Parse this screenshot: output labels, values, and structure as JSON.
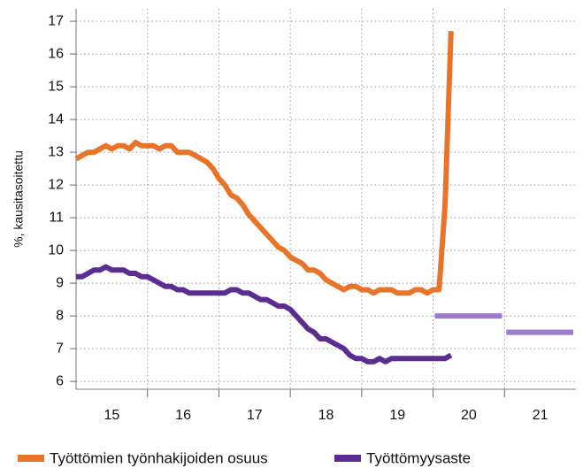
{
  "chart_data": {
    "type": "line",
    "ylabel": "%, kausitasoitettu",
    "x": [
      15,
      15.083,
      15.167,
      15.25,
      15.333,
      15.417,
      15.5,
      15.583,
      15.667,
      15.75,
      15.833,
      15.917,
      16,
      16.083,
      16.167,
      16.25,
      16.333,
      16.417,
      16.5,
      16.583,
      16.667,
      16.75,
      16.833,
      16.917,
      17,
      17.083,
      17.167,
      17.25,
      17.333,
      17.417,
      17.5,
      17.583,
      17.667,
      17.75,
      17.833,
      17.917,
      18,
      18.083,
      18.167,
      18.25,
      18.333,
      18.417,
      18.5,
      18.583,
      18.667,
      18.75,
      18.833,
      18.917,
      19,
      19.083,
      19.167,
      19.25,
      19.333,
      19.417,
      19.5,
      19.583,
      19.667,
      19.75,
      19.833,
      19.917,
      20,
      20.083,
      20.167,
      20.25
    ],
    "series": [
      {
        "name": "Työttömien työnhakijoiden osuus",
        "color": "#e8742a",
        "values": [
          12.8,
          12.9,
          13.0,
          13.0,
          13.1,
          13.2,
          13.1,
          13.2,
          13.2,
          13.1,
          13.3,
          13.2,
          13.2,
          13.2,
          13.1,
          13.2,
          13.2,
          13.0,
          13.0,
          13.0,
          12.9,
          12.8,
          12.7,
          12.5,
          12.2,
          12.0,
          11.7,
          11.6,
          11.4,
          11.1,
          10.9,
          10.7,
          10.5,
          10.3,
          10.1,
          10.0,
          9.8,
          9.7,
          9.6,
          9.4,
          9.4,
          9.3,
          9.1,
          9.0,
          8.9,
          8.8,
          8.9,
          8.9,
          8.8,
          8.8,
          8.7,
          8.8,
          8.8,
          8.8,
          8.7,
          8.7,
          8.7,
          8.8,
          8.8,
          8.7,
          8.8,
          8.8,
          11.4,
          16.7
        ]
      },
      {
        "name": "Työttömyysaste",
        "color": "#5b2d91",
        "values": [
          9.2,
          9.2,
          9.3,
          9.4,
          9.4,
          9.5,
          9.4,
          9.4,
          9.4,
          9.3,
          9.3,
          9.2,
          9.2,
          9.1,
          9.0,
          8.9,
          8.9,
          8.8,
          8.8,
          8.7,
          8.7,
          8.7,
          8.7,
          8.7,
          8.7,
          8.7,
          8.8,
          8.8,
          8.7,
          8.7,
          8.6,
          8.5,
          8.5,
          8.4,
          8.3,
          8.3,
          8.2,
          8.0,
          7.8,
          7.6,
          7.5,
          7.3,
          7.3,
          7.2,
          7.1,
          7.0,
          6.8,
          6.7,
          6.7,
          6.6,
          6.6,
          6.7,
          6.6,
          6.7,
          6.7,
          6.7,
          6.7,
          6.7,
          6.7,
          6.7,
          6.7,
          6.7,
          6.7,
          6.8
        ]
      }
    ],
    "forecast": {
      "color": "#9b7bd0",
      "x": [
        20,
        21
      ],
      "values": [
        8.0,
        7.5
      ]
    },
    "xlim": [
      15,
      22
    ],
    "xticks": [
      {
        "value": 15.5,
        "label": "15"
      },
      {
        "value": 16.5,
        "label": "16"
      },
      {
        "value": 17.5,
        "label": "17"
      },
      {
        "value": 18.5,
        "label": "18"
      },
      {
        "value": 19.5,
        "label": "19"
      },
      {
        "value": 20.5,
        "label": "20"
      },
      {
        "value": 21.5,
        "label": "21"
      }
    ],
    "x_gridlines": [
      16,
      17,
      18,
      19,
      20,
      21
    ],
    "ylim": [
      5.76,
      17.38
    ],
    "yticks": [
      6,
      7,
      8,
      9,
      10,
      11,
      12,
      13,
      14,
      15,
      16,
      17
    ],
    "grid": true,
    "legend": "bottom"
  }
}
